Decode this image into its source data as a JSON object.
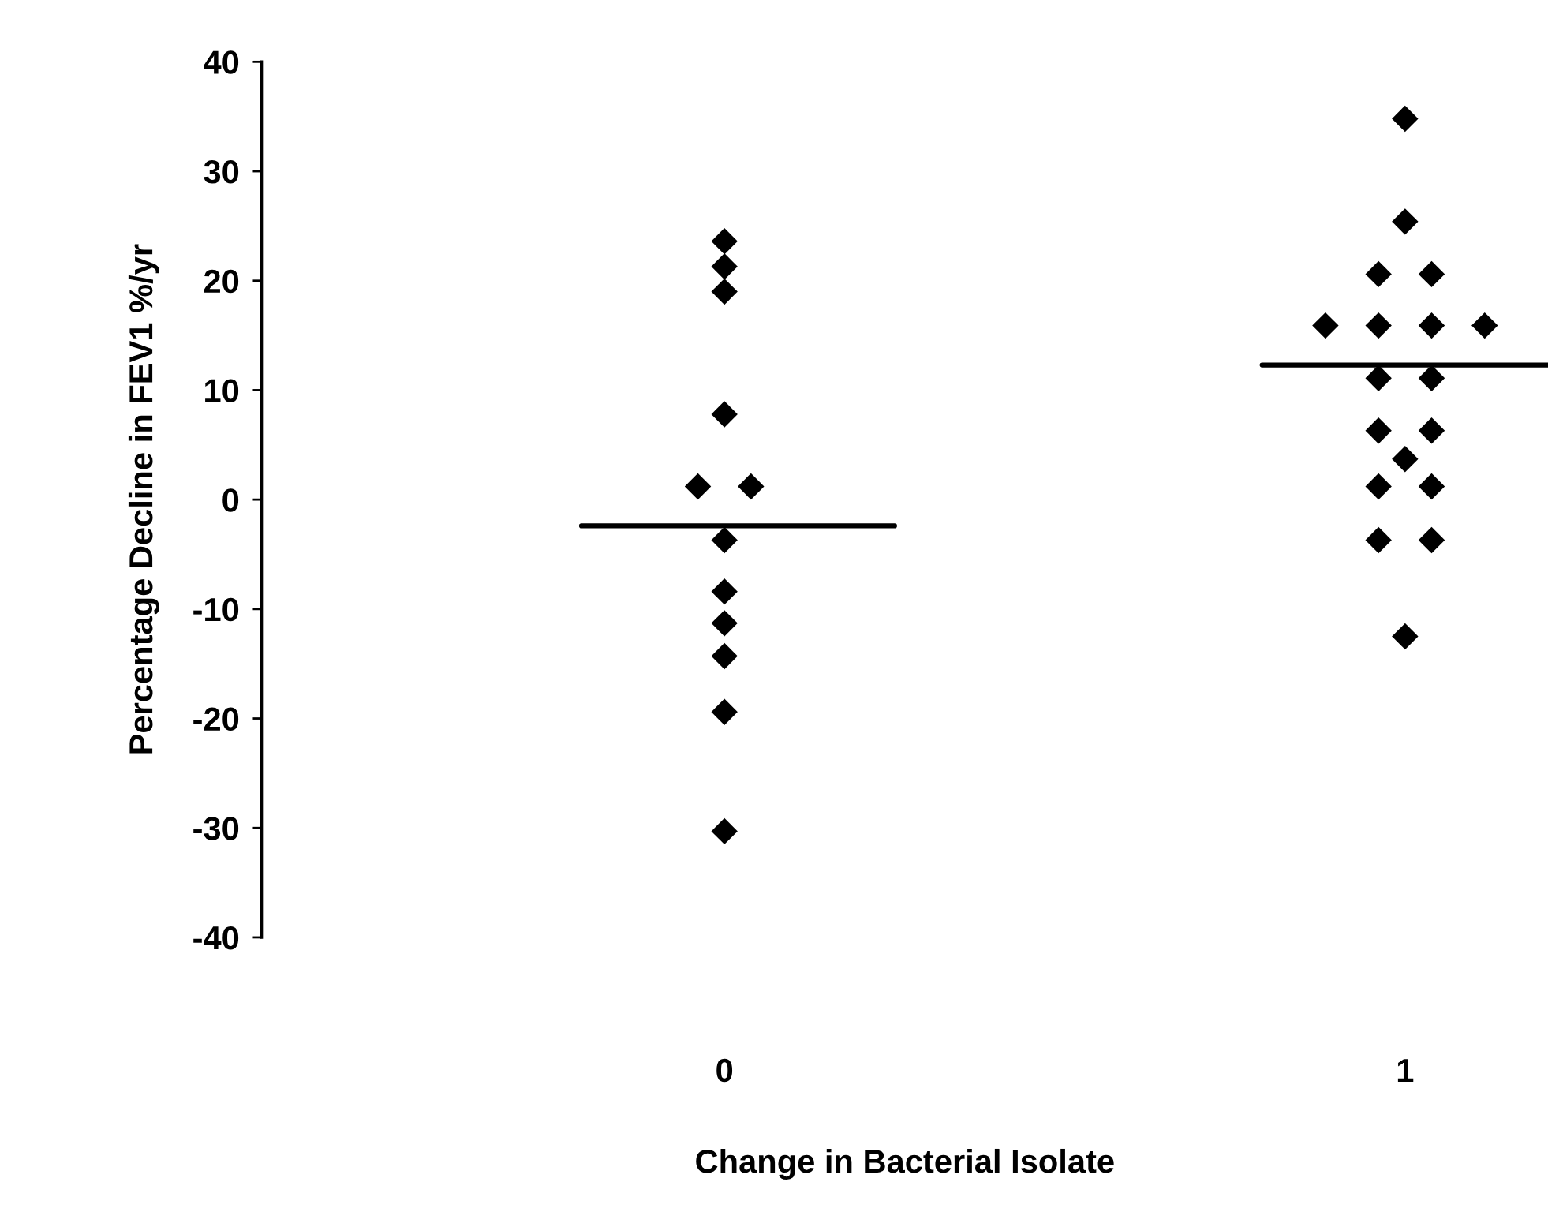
{
  "chart_data": {
    "type": "scatter",
    "xlabel": "Change in Bacterial Isolate",
    "ylabel": "Percentage Decline in FEV1 %/yr",
    "categories": [
      "0",
      "1"
    ],
    "series": [
      {
        "color": "#000000",
        "x": [
          "0",
          "0",
          "0",
          "0",
          "0",
          "0",
          "0",
          "0",
          "0",
          "0",
          "0",
          "0"
        ],
        "values": [
          23.6,
          21.3,
          19.0,
          7.8,
          1.2,
          1.2,
          -3.7,
          -8.4,
          -11.3,
          -14.3,
          -19.4,
          -30.3
        ]
      },
      {
        "color": "#000000",
        "x": [
          "1",
          "1",
          "1",
          "1",
          "1",
          "1",
          "1",
          "1",
          "1",
          "1",
          "1",
          "1",
          "1",
          "1",
          "1",
          "1",
          "1",
          "1"
        ],
        "values": [
          34.8,
          25.4,
          20.6,
          20.6,
          15.9,
          15.9,
          15.9,
          15.9,
          11.1,
          11.1,
          6.3,
          6.3,
          3.7,
          1.2,
          1.2,
          -3.7,
          -3.7,
          -12.5
        ]
      }
    ],
    "ref_lines": [
      {
        "axis": "y",
        "value": -2.4,
        "color": "#000000",
        "line_style": "solid"
      },
      {
        "axis": "y",
        "value": 12.3,
        "color": "#000000",
        "line_style": "solid"
      }
    ],
    "ylim": [
      -40,
      40
    ],
    "yticks": [
      -40,
      -30,
      -20,
      -10,
      0,
      10,
      20,
      30,
      40
    ],
    "marker": "diamond",
    "grid": false
  }
}
